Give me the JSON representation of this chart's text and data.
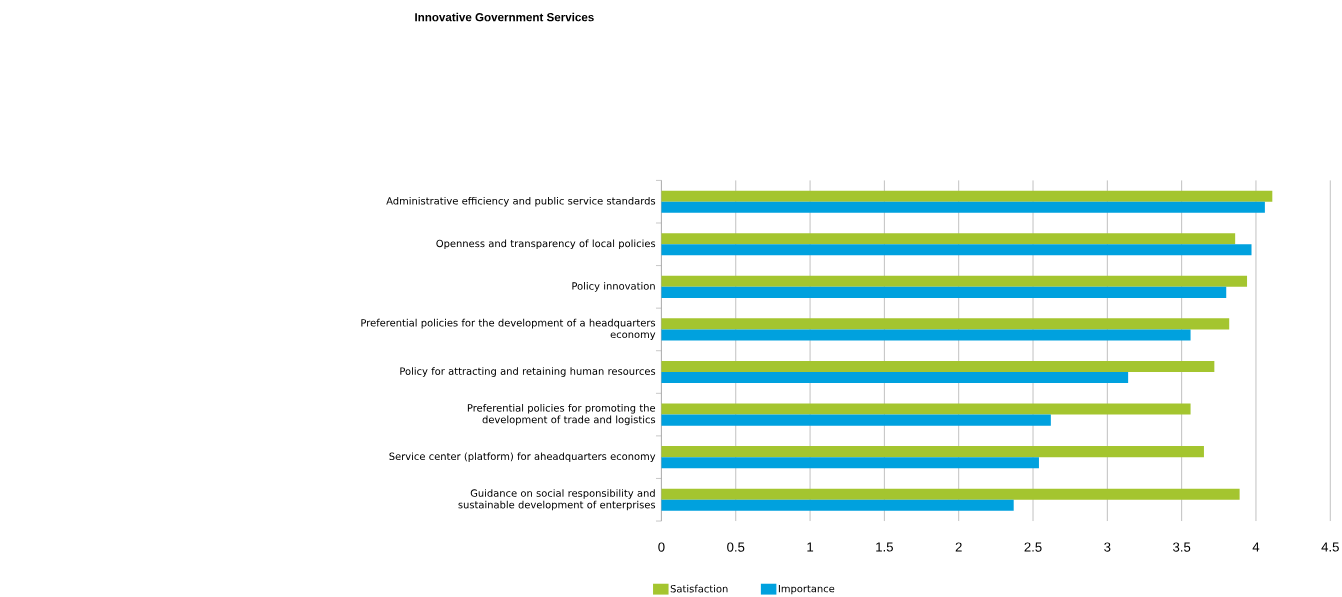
{
  "chart_data": {
    "type": "bar",
    "orientation": "horizontal",
    "title": "Innovative Government Services",
    "categories": [
      "Administrative efficiency and public service standards",
      "Openness and transparency of local policies",
      "Policy innovation",
      "Preferential policies for the development of a headquarters economy",
      "Policy for attracting and retaining human resources",
      "Preferential policies for promoting the development of trade and logistics",
      "Service center (platform) for aheadquarters economy",
      "Guidance on social responsibility and sustainable development of enterprises"
    ],
    "series": [
      {
        "name": "Satisfaction",
        "color": "#a4c52f",
        "values": [
          4.11,
          3.86,
          3.94,
          3.82,
          3.72,
          3.56,
          3.65,
          3.89
        ]
      },
      {
        "name": "Importance",
        "color": "#00a1de",
        "values": [
          4.06,
          3.97,
          3.8,
          3.56,
          3.14,
          2.62,
          2.54,
          2.37
        ]
      }
    ],
    "xlim": [
      0,
      4.5
    ],
    "xticks": [
      0,
      0.5,
      1,
      1.5,
      2,
      2.5,
      3,
      3.5,
      4,
      4.5
    ],
    "grid": "x",
    "legend": "bottom"
  }
}
